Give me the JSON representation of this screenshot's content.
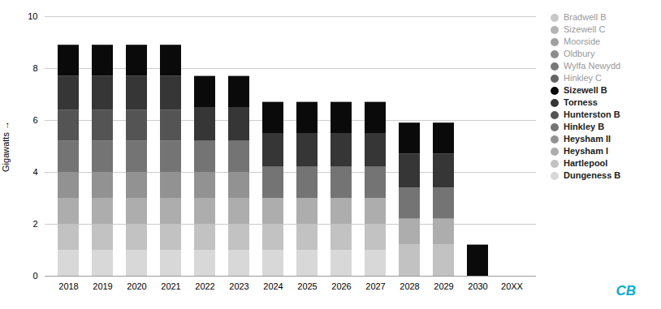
{
  "chart_data": {
    "type": "bar",
    "stacked": true,
    "grid": true,
    "legend": "right",
    "categories": [
      "2018",
      "2019",
      "2020",
      "2021",
      "2022",
      "2023",
      "2024",
      "2025",
      "2026",
      "2027",
      "2028",
      "2029",
      "2030",
      "20XX"
    ],
    "ylabel": "Gigawatts",
    "ylim": [
      0,
      10
    ],
    "yticks": [
      0,
      2,
      4,
      6,
      8,
      10
    ],
    "series": [
      {
        "name": "Dungeness B",
        "color": "#d8d8d8",
        "values": [
          1.0,
          1.0,
          1.0,
          1.0,
          1.0,
          1.0,
          1.0,
          1.0,
          1.0,
          1.0,
          0.0,
          0.0,
          0.0,
          0.0
        ]
      },
      {
        "name": "Hartlepool",
        "color": "#c2c2c2",
        "values": [
          1.0,
          1.0,
          1.0,
          1.0,
          1.0,
          1.0,
          1.0,
          1.0,
          1.0,
          1.0,
          1.2,
          1.2,
          0.0,
          0.0
        ]
      },
      {
        "name": "Heysham I",
        "color": "#adadad",
        "values": [
          1.0,
          1.0,
          1.0,
          1.0,
          1.0,
          1.0,
          1.0,
          1.0,
          1.0,
          1.0,
          1.0,
          1.0,
          0.0,
          0.0
        ]
      },
      {
        "name": "Heysham II",
        "color": "#929292",
        "values": [
          1.0,
          1.0,
          1.0,
          1.0,
          1.0,
          1.0,
          0.0,
          0.0,
          0.0,
          0.0,
          0.0,
          0.0,
          0.0,
          0.0
        ]
      },
      {
        "name": "Hinkley B",
        "color": "#747474",
        "values": [
          1.2,
          1.2,
          1.2,
          1.2,
          1.2,
          1.2,
          1.2,
          1.2,
          1.2,
          1.2,
          1.2,
          1.2,
          0.0,
          0.0
        ]
      },
      {
        "name": "Hunterston B",
        "color": "#545454",
        "values": [
          1.2,
          1.2,
          1.2,
          1.2,
          0.0,
          0.0,
          0.0,
          0.0,
          0.0,
          0.0,
          0.0,
          0.0,
          0.0,
          0.0
        ]
      },
      {
        "name": "Torness",
        "color": "#363636",
        "values": [
          1.3,
          1.3,
          1.3,
          1.3,
          1.3,
          1.3,
          1.3,
          1.3,
          1.3,
          1.3,
          1.3,
          1.3,
          0.0,
          0.0
        ]
      },
      {
        "name": "Sizewell B",
        "color": "#0a0a0a",
        "values": [
          1.2,
          1.2,
          1.2,
          1.2,
          1.2,
          1.2,
          1.2,
          1.2,
          1.2,
          1.2,
          1.2,
          1.2,
          1.2,
          0.0
        ]
      },
      {
        "name": "Bradwell B",
        "color": "#c8c8c8",
        "values": [
          null,
          null,
          null,
          null,
          null,
          null,
          null,
          null,
          null,
          null,
          null,
          null,
          null,
          null
        ]
      },
      {
        "name": "Sizewell C",
        "color": "#b4b4b4",
        "values": [
          null,
          null,
          null,
          null,
          null,
          null,
          null,
          null,
          null,
          null,
          null,
          null,
          null,
          null
        ]
      },
      {
        "name": "Moorside",
        "color": "#a0a0a0",
        "values": [
          null,
          null,
          null,
          null,
          null,
          null,
          null,
          null,
          null,
          null,
          null,
          null,
          null,
          null
        ]
      },
      {
        "name": "Oldbury",
        "color": "#8c8c8c",
        "values": [
          null,
          null,
          null,
          null,
          null,
          null,
          null,
          null,
          null,
          null,
          null,
          null,
          null,
          null
        ]
      },
      {
        "name": "Wylfa Newydd",
        "color": "#787878",
        "values": [
          null,
          null,
          null,
          null,
          null,
          null,
          null,
          null,
          null,
          null,
          null,
          null,
          null,
          null
        ]
      },
      {
        "name": "Hinkley C",
        "color": "#646464",
        "values": [
          null,
          null,
          null,
          null,
          null,
          null,
          null,
          null,
          null,
          null,
          null,
          null,
          null,
          null
        ]
      }
    ],
    "annotations": [
      {
        "text": "CB",
        "color": "#00acd3"
      }
    ]
  }
}
